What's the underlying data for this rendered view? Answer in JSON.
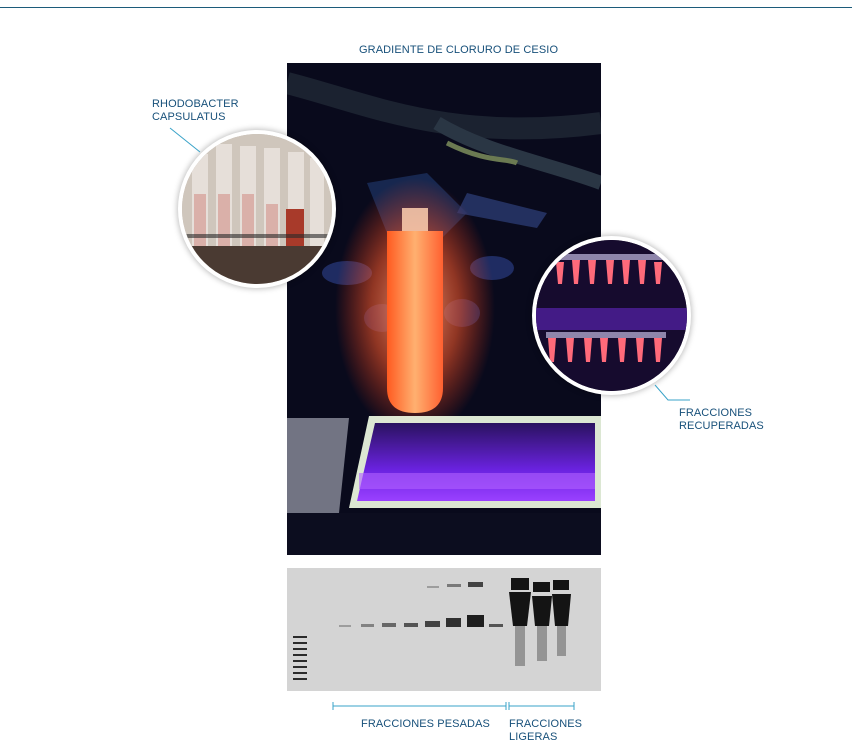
{
  "labels": {
    "gradient_title": "GRADIENTE DE CLORURO DE CESIO",
    "rhodobacter_line1": "RHODOBACTER",
    "rhodobacter_line2": "CAPSULATUS",
    "recovered_line1": "FRACCIONES",
    "recovered_line2": "RECUPERADAS",
    "heavy_fractions": "FRACCIONES PESADAS",
    "light_line1": "FRACCIONES",
    "light_line2": "LIGERAS"
  },
  "colors": {
    "label_text": "#17507a",
    "callout_line": "#3aa3c8",
    "tube_glow": "#ff6a3a",
    "uv_purple": "#7a2cff"
  }
}
